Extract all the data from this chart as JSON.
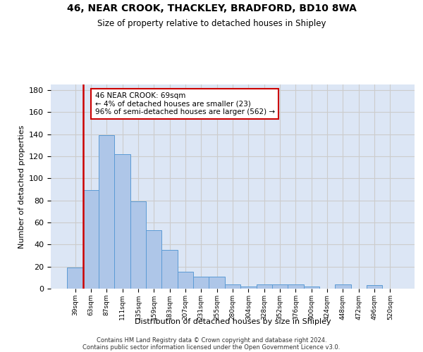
{
  "title1": "46, NEAR CROOK, THACKLEY, BRADFORD, BD10 8WA",
  "title2": "Size of property relative to detached houses in Shipley",
  "xlabel": "Distribution of detached houses by size in Shipley",
  "ylabel": "Number of detached properties",
  "bar_labels": [
    "39sqm",
    "63sqm",
    "87sqm",
    "111sqm",
    "135sqm",
    "159sqm",
    "183sqm",
    "207sqm",
    "231sqm",
    "255sqm",
    "280sqm",
    "304sqm",
    "328sqm",
    "352sqm",
    "376sqm",
    "400sqm",
    "424sqm",
    "448sqm",
    "472sqm",
    "496sqm",
    "520sqm"
  ],
  "bar_values": [
    19,
    89,
    139,
    122,
    79,
    53,
    35,
    15,
    11,
    11,
    4,
    2,
    4,
    4,
    4,
    2,
    0,
    4,
    0,
    3,
    0
  ],
  "bar_color": "#aec6e8",
  "bar_edge_color": "#5b9bd5",
  "highlight_bar_index": 1,
  "highlight_line_color": "#cc0000",
  "annotation_text": "46 NEAR CROOK: 69sqm\n← 4% of detached houses are smaller (23)\n96% of semi-detached houses are larger (562) →",
  "annotation_box_color": "#ffffff",
  "annotation_box_edge": "#cc0000",
  "ylim": [
    0,
    185
  ],
  "yticks": [
    0,
    20,
    40,
    60,
    80,
    100,
    120,
    140,
    160,
    180
  ],
  "grid_color": "#cccccc",
  "bg_color": "#dce6f5",
  "footer1": "Contains HM Land Registry data © Crown copyright and database right 2024.",
  "footer2": "Contains public sector information licensed under the Open Government Licence v3.0."
}
